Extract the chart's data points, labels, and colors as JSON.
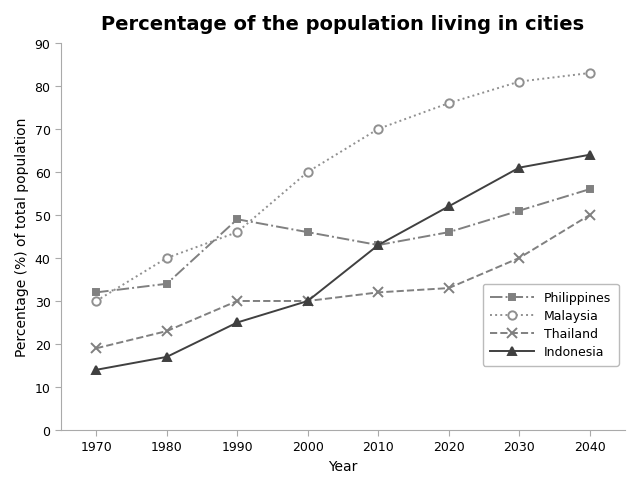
{
  "title": "Percentage of the population living in cities",
  "xlabel": "Year",
  "ylabel": "Percentage (%) of total population",
  "years": [
    1970,
    1980,
    1990,
    2000,
    2010,
    2020,
    2030,
    2040
  ],
  "series": {
    "Philippines": {
      "values": [
        32,
        34,
        49,
        46,
        43,
        46,
        51,
        56
      ],
      "color": "#808080",
      "linestyle": "-.",
      "marker": "s",
      "markersize": 5,
      "markerfacecolor": "#808080"
    },
    "Malaysia": {
      "values": [
        30,
        40,
        46,
        60,
        70,
        76,
        81,
        83
      ],
      "color": "#909090",
      "linestyle": ":",
      "marker": "o",
      "markersize": 6,
      "markerfacecolor": "white"
    },
    "Thailand": {
      "values": [
        19,
        23,
        30,
        30,
        32,
        33,
        40,
        50
      ],
      "color": "#808080",
      "linestyle": "--",
      "marker": "x",
      "markersize": 7,
      "markerfacecolor": "#808080"
    },
    "Indonesia": {
      "values": [
        14,
        17,
        25,
        30,
        43,
        52,
        61,
        64
      ],
      "color": "#404040",
      "linestyle": "-",
      "marker": "^",
      "markersize": 6,
      "markerfacecolor": "#404040"
    }
  },
  "ylim": [
    0,
    90
  ],
  "yticks": [
    0,
    10,
    20,
    30,
    40,
    50,
    60,
    70,
    80,
    90
  ],
  "background_color": "#ffffff",
  "title_fontsize": 14,
  "label_fontsize": 10,
  "tick_fontsize": 9
}
